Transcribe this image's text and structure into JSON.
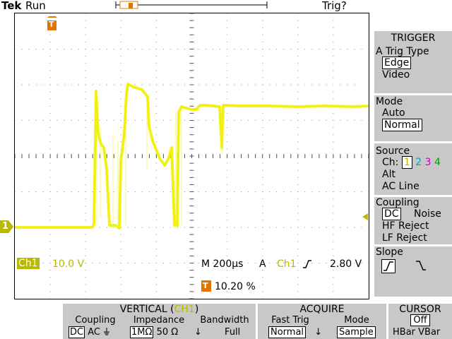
{
  "topbar": {
    "brand": "Tek",
    "status": "Run",
    "trigger_status": "Trig?"
  },
  "screen": {
    "ch1_marker": "1",
    "trigger_marker": "T",
    "ch1_label": "Ch1",
    "ch1_scale": "10.0 V",
    "timebase": "M 200µs",
    "trig_mode_letter": "A",
    "trig_source": "Ch1",
    "trig_level": "2.80 V",
    "trig_position": "10.20 %",
    "trace_color": "#f0f000"
  },
  "trigger_menu": {
    "title": "TRIGGER",
    "type": {
      "label": "A Trig Type",
      "options": [
        "Edge",
        "Video"
      ],
      "selected": "Edge"
    },
    "mode": {
      "label": "Mode",
      "options": [
        "Auto",
        "Normal"
      ],
      "selected": "Normal"
    },
    "source": {
      "label": "Source",
      "prefix": "Ch:",
      "channels": [
        "1",
        "2",
        "3",
        "4"
      ],
      "selected": "1",
      "channel_colors": [
        "#b9b900",
        "#00a6b3",
        "#c400c4",
        "#00a000"
      ],
      "other_options": [
        "Alt",
        "AC Line"
      ]
    },
    "coupling": {
      "label": "Coupling",
      "options": [
        "DC",
        "Noise",
        "HF Reject",
        "LF Reject"
      ],
      "selected": "DC"
    },
    "slope": {
      "label": "Slope"
    }
  },
  "vertical_menu": {
    "title": "VERTICAL (",
    "channel": "CH1",
    "title_end": ")",
    "coupling": {
      "label": "Coupling",
      "dc": "DC",
      "ac": "AC"
    },
    "impedance": {
      "label": "Impedance",
      "one_meg": "1MΩ",
      "fifty": "50 Ω"
    },
    "bandwidth": {
      "label": "Bandwidth",
      "value": "Full"
    }
  },
  "acquire_menu": {
    "title": "ACQUIRE",
    "fast_trig": {
      "label": "Fast Trig",
      "value": "Normal"
    },
    "mode": {
      "label": "Mode",
      "value": "Sample"
    }
  },
  "cursor_menu": {
    "title": "CURSOR",
    "value": "Off",
    "options": "HBar VBar"
  }
}
